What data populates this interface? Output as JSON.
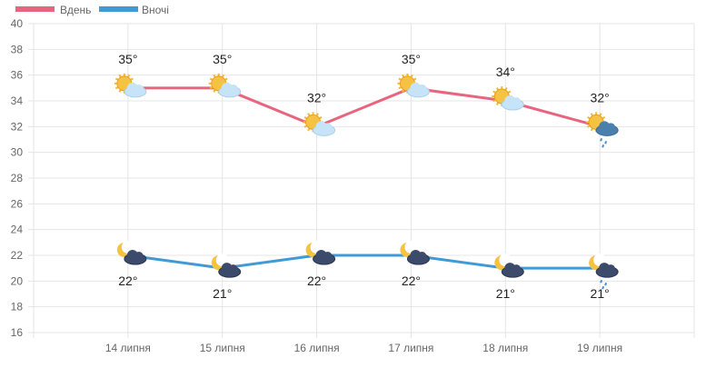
{
  "chart_data": {
    "type": "line",
    "title": "",
    "xlabel": "",
    "ylabel": "",
    "categories": [
      "14 липня",
      "15 липня",
      "16 липня",
      "17 липня",
      "18 липня",
      "19 липня"
    ],
    "ylim": [
      16,
      40
    ],
    "yticks": [
      16,
      18,
      20,
      22,
      24,
      26,
      28,
      30,
      32,
      34,
      36,
      38,
      40
    ],
    "grid": true,
    "legend_position": "top-left",
    "series": [
      {
        "name": "Вдень",
        "color": "#e8657f",
        "values": [
          35,
          35,
          32,
          35,
          34,
          32
        ],
        "labels": [
          "35°",
          "35°",
          "32°",
          "35°",
          "34°",
          "32°"
        ],
        "icons": [
          "sun-cloud-icon",
          "sun-cloud-icon",
          "sun-cloud-icon",
          "sun-cloud-icon",
          "sun-cloud-icon",
          "sun-rain-cloud-icon"
        ]
      },
      {
        "name": "Вночі",
        "color": "#3f9ad6",
        "values": [
          22,
          21,
          22,
          22,
          21,
          21
        ],
        "labels": [
          "22°",
          "21°",
          "22°",
          "22°",
          "21°",
          "21°"
        ],
        "icons": [
          "moon-cloud-icon",
          "moon-cloud-icon",
          "moon-cloud-icon",
          "moon-cloud-icon",
          "moon-cloud-icon",
          "moon-rain-cloud-icon"
        ]
      }
    ]
  }
}
